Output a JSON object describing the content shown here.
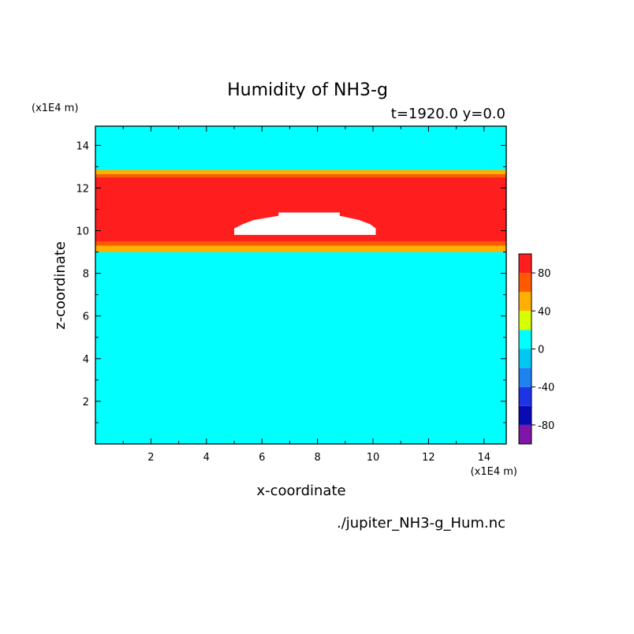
{
  "chart_data": {
    "type": "heatmap",
    "title": "Humidity of NH3-g",
    "subtitle": "t=1920.0 y=0.0",
    "xlabel": "x-coordinate",
    "ylabel": "z-coordinate",
    "x_unit": "(x1E4 m)",
    "z_unit": "(x1E4 m)",
    "source_file": "./jupiter_NH3-g_Hum.nc",
    "xlim": [
      0,
      14.8
    ],
    "zlim": [
      0,
      14.9
    ],
    "x_ticks": [
      2,
      4,
      6,
      8,
      10,
      12,
      14
    ],
    "z_ticks": [
      2,
      4,
      6,
      8,
      10,
      12,
      14
    ],
    "background_value": 10,
    "bands": [
      {
        "z0": 9.0,
        "z1": 9.3,
        "value": 50
      },
      {
        "z0": 9.3,
        "z1": 9.5,
        "value": 70
      },
      {
        "z0": 9.5,
        "z1": 12.5,
        "value": 90
      },
      {
        "z0": 12.5,
        "z1": 12.65,
        "value": 70
      },
      {
        "z0": 12.65,
        "z1": 12.85,
        "value": 50
      }
    ],
    "undefined_region": [
      [
        5.0,
        9.8
      ],
      [
        10.1,
        9.8
      ],
      [
        10.1,
        10.1
      ],
      [
        9.9,
        10.3
      ],
      [
        9.5,
        10.5
      ],
      [
        8.8,
        10.7
      ],
      [
        8.8,
        10.85
      ],
      [
        6.6,
        10.85
      ],
      [
        6.6,
        10.7
      ],
      [
        5.7,
        10.5
      ],
      [
        5.3,
        10.3
      ],
      [
        5.0,
        10.1
      ]
    ],
    "colorbar": {
      "levels": [
        -100,
        -80,
        -60,
        -40,
        -20,
        0,
        20,
        40,
        60,
        80,
        100
      ],
      "colors": [
        "#7f16a8",
        "#0a0ab4",
        "#1e32e6",
        "#1e82f0",
        "#00c8f0",
        "#00ffff",
        "#d8ff00",
        "#ffb000",
        "#ff5a00",
        "#ff1e1e",
        "#ffadad"
      ],
      "labels": [
        -80,
        -40,
        0,
        40,
        80
      ]
    }
  }
}
